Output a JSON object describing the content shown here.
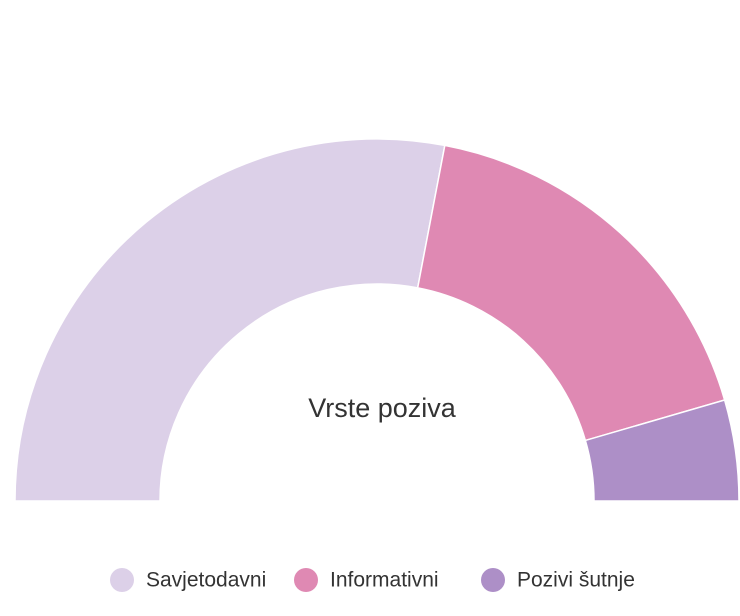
{
  "chart_data": {
    "type": "pie",
    "title": "Vrste poziva",
    "categories": [
      "Savjetodavni",
      "Informativni",
      "Pozivi šutnje"
    ],
    "values": [
      56,
      35,
      9
    ],
    "colors": [
      "#dcd0e8",
      "#df89b3",
      "#ad8fc7"
    ],
    "legend": "bottom"
  }
}
